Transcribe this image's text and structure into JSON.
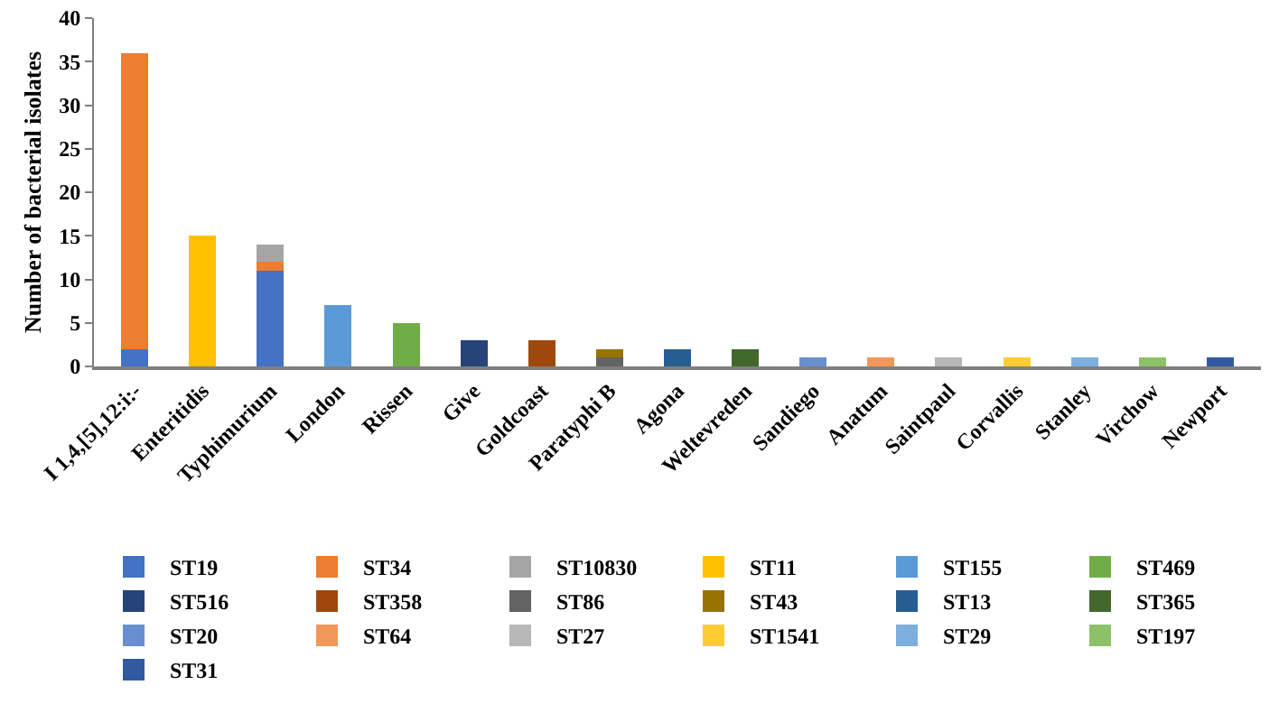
{
  "chart_data": {
    "type": "bar",
    "stacked": true,
    "ylabel": "Number of bacterial isolates",
    "categories": [
      "I 1,4,[5],12:i:-",
      "Enteritidis",
      "Typhimurium",
      "London",
      "Rissen",
      "Give",
      "Goldcoast",
      "Paratyphi B",
      "Agona",
      "Weltevreden",
      "Sandiego",
      "Anatum",
      "Saintpaul",
      "Corvallis",
      "Stanley",
      "Virchow",
      "Newport"
    ],
    "series": [
      {
        "name": "ST19",
        "color": "#4472c4",
        "values": [
          2,
          null,
          11,
          null,
          null,
          null,
          null,
          null,
          null,
          null,
          null,
          null,
          null,
          null,
          null,
          null,
          null
        ]
      },
      {
        "name": "ST34",
        "color": "#ed7d31",
        "values": [
          34,
          null,
          1,
          null,
          null,
          null,
          null,
          null,
          null,
          null,
          null,
          null,
          null,
          null,
          null,
          null,
          null
        ]
      },
      {
        "name": "ST10830",
        "color": "#a5a5a5",
        "values": [
          null,
          null,
          2,
          null,
          null,
          null,
          null,
          null,
          null,
          null,
          null,
          null,
          null,
          null,
          null,
          null,
          null
        ]
      },
      {
        "name": "ST11",
        "color": "#ffc000",
        "values": [
          null,
          15,
          null,
          null,
          null,
          null,
          null,
          null,
          null,
          null,
          null,
          null,
          null,
          null,
          null,
          null,
          null
        ]
      },
      {
        "name": "ST155",
        "color": "#5b9bd5",
        "values": [
          null,
          null,
          null,
          7,
          null,
          null,
          null,
          null,
          null,
          null,
          null,
          null,
          null,
          null,
          null,
          null,
          null
        ]
      },
      {
        "name": "ST469",
        "color": "#70ad47",
        "values": [
          null,
          null,
          null,
          null,
          5,
          null,
          null,
          null,
          null,
          null,
          null,
          null,
          null,
          null,
          null,
          null,
          null
        ]
      },
      {
        "name": "ST516",
        "color": "#264478",
        "values": [
          null,
          null,
          null,
          null,
          null,
          3,
          null,
          null,
          null,
          null,
          null,
          null,
          null,
          null,
          null,
          null,
          null
        ]
      },
      {
        "name": "ST358",
        "color": "#9e480e",
        "values": [
          null,
          null,
          null,
          null,
          null,
          null,
          3,
          null,
          null,
          null,
          null,
          null,
          null,
          null,
          null,
          null,
          null
        ]
      },
      {
        "name": "ST86",
        "color": "#636363",
        "values": [
          null,
          null,
          null,
          null,
          null,
          null,
          null,
          1,
          null,
          null,
          null,
          null,
          null,
          null,
          null,
          null,
          null
        ]
      },
      {
        "name": "ST43",
        "color": "#997300",
        "values": [
          null,
          null,
          null,
          null,
          null,
          null,
          null,
          1,
          null,
          null,
          null,
          null,
          null,
          null,
          null,
          null,
          null
        ]
      },
      {
        "name": "ST13",
        "color": "#255e91",
        "values": [
          null,
          null,
          null,
          null,
          null,
          null,
          null,
          null,
          2,
          null,
          null,
          null,
          null,
          null,
          null,
          null,
          null
        ]
      },
      {
        "name": "ST365",
        "color": "#43682b",
        "values": [
          null,
          null,
          null,
          null,
          null,
          null,
          null,
          null,
          null,
          2,
          null,
          null,
          null,
          null,
          null,
          null,
          null
        ]
      },
      {
        "name": "ST20",
        "color": "#698ed0",
        "values": [
          null,
          null,
          null,
          null,
          null,
          null,
          null,
          null,
          null,
          null,
          1,
          null,
          null,
          null,
          null,
          null,
          null
        ]
      },
      {
        "name": "ST64",
        "color": "#f1975a",
        "values": [
          null,
          null,
          null,
          null,
          null,
          null,
          null,
          null,
          null,
          null,
          null,
          1,
          null,
          null,
          null,
          null,
          null
        ]
      },
      {
        "name": "ST27",
        "color": "#b7b7b7",
        "values": [
          null,
          null,
          null,
          null,
          null,
          null,
          null,
          null,
          null,
          null,
          null,
          null,
          1,
          null,
          null,
          null,
          null
        ]
      },
      {
        "name": "ST1541",
        "color": "#ffcd33",
        "values": [
          null,
          null,
          null,
          null,
          null,
          null,
          null,
          null,
          null,
          null,
          null,
          null,
          null,
          1,
          null,
          null,
          null
        ]
      },
      {
        "name": "ST29",
        "color": "#7cafdd",
        "values": [
          null,
          null,
          null,
          null,
          null,
          null,
          null,
          null,
          null,
          null,
          null,
          null,
          null,
          null,
          1,
          null,
          null
        ]
      },
      {
        "name": "ST197",
        "color": "#8cc168",
        "values": [
          null,
          null,
          null,
          null,
          null,
          null,
          null,
          null,
          null,
          null,
          null,
          null,
          null,
          null,
          null,
          1,
          null
        ]
      },
      {
        "name": "ST31",
        "color": "#335aa1",
        "values": [
          null,
          null,
          null,
          null,
          null,
          null,
          null,
          null,
          null,
          null,
          null,
          null,
          null,
          null,
          null,
          null,
          1
        ]
      }
    ],
    "ylim": [
      0,
      40
    ],
    "yticks": [
      0,
      5,
      10,
      15,
      20,
      25,
      30,
      35,
      40
    ],
    "grid": false,
    "legend": "bottom"
  }
}
